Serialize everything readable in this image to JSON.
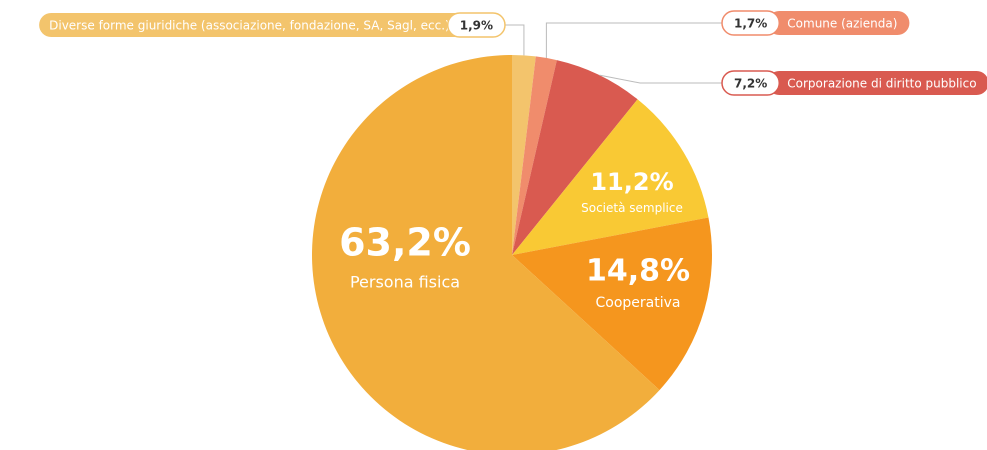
{
  "chart_data": {
    "type": "pie",
    "categories": [
      "Diverse forme giuridiche (associazione, fondazione, SA, Sagl, ecc.)",
      "Comune (azienda)",
      "Corporazione di diritto pubblico",
      "Società semplice",
      "Cooperativa",
      "Persona fisica"
    ],
    "values": [
      1.9,
      1.7,
      7.2,
      11.2,
      14.8,
      63.2
    ],
    "value_labels": [
      "1,9%",
      "1,7%",
      "7,2%",
      "11,2%",
      "14,8%",
      "63,2%"
    ],
    "colors": [
      "#f3c46c",
      "#f08c6c",
      "#d95a50",
      "#f9c934",
      "#f5961e",
      "#f2ae3c"
    ]
  }
}
